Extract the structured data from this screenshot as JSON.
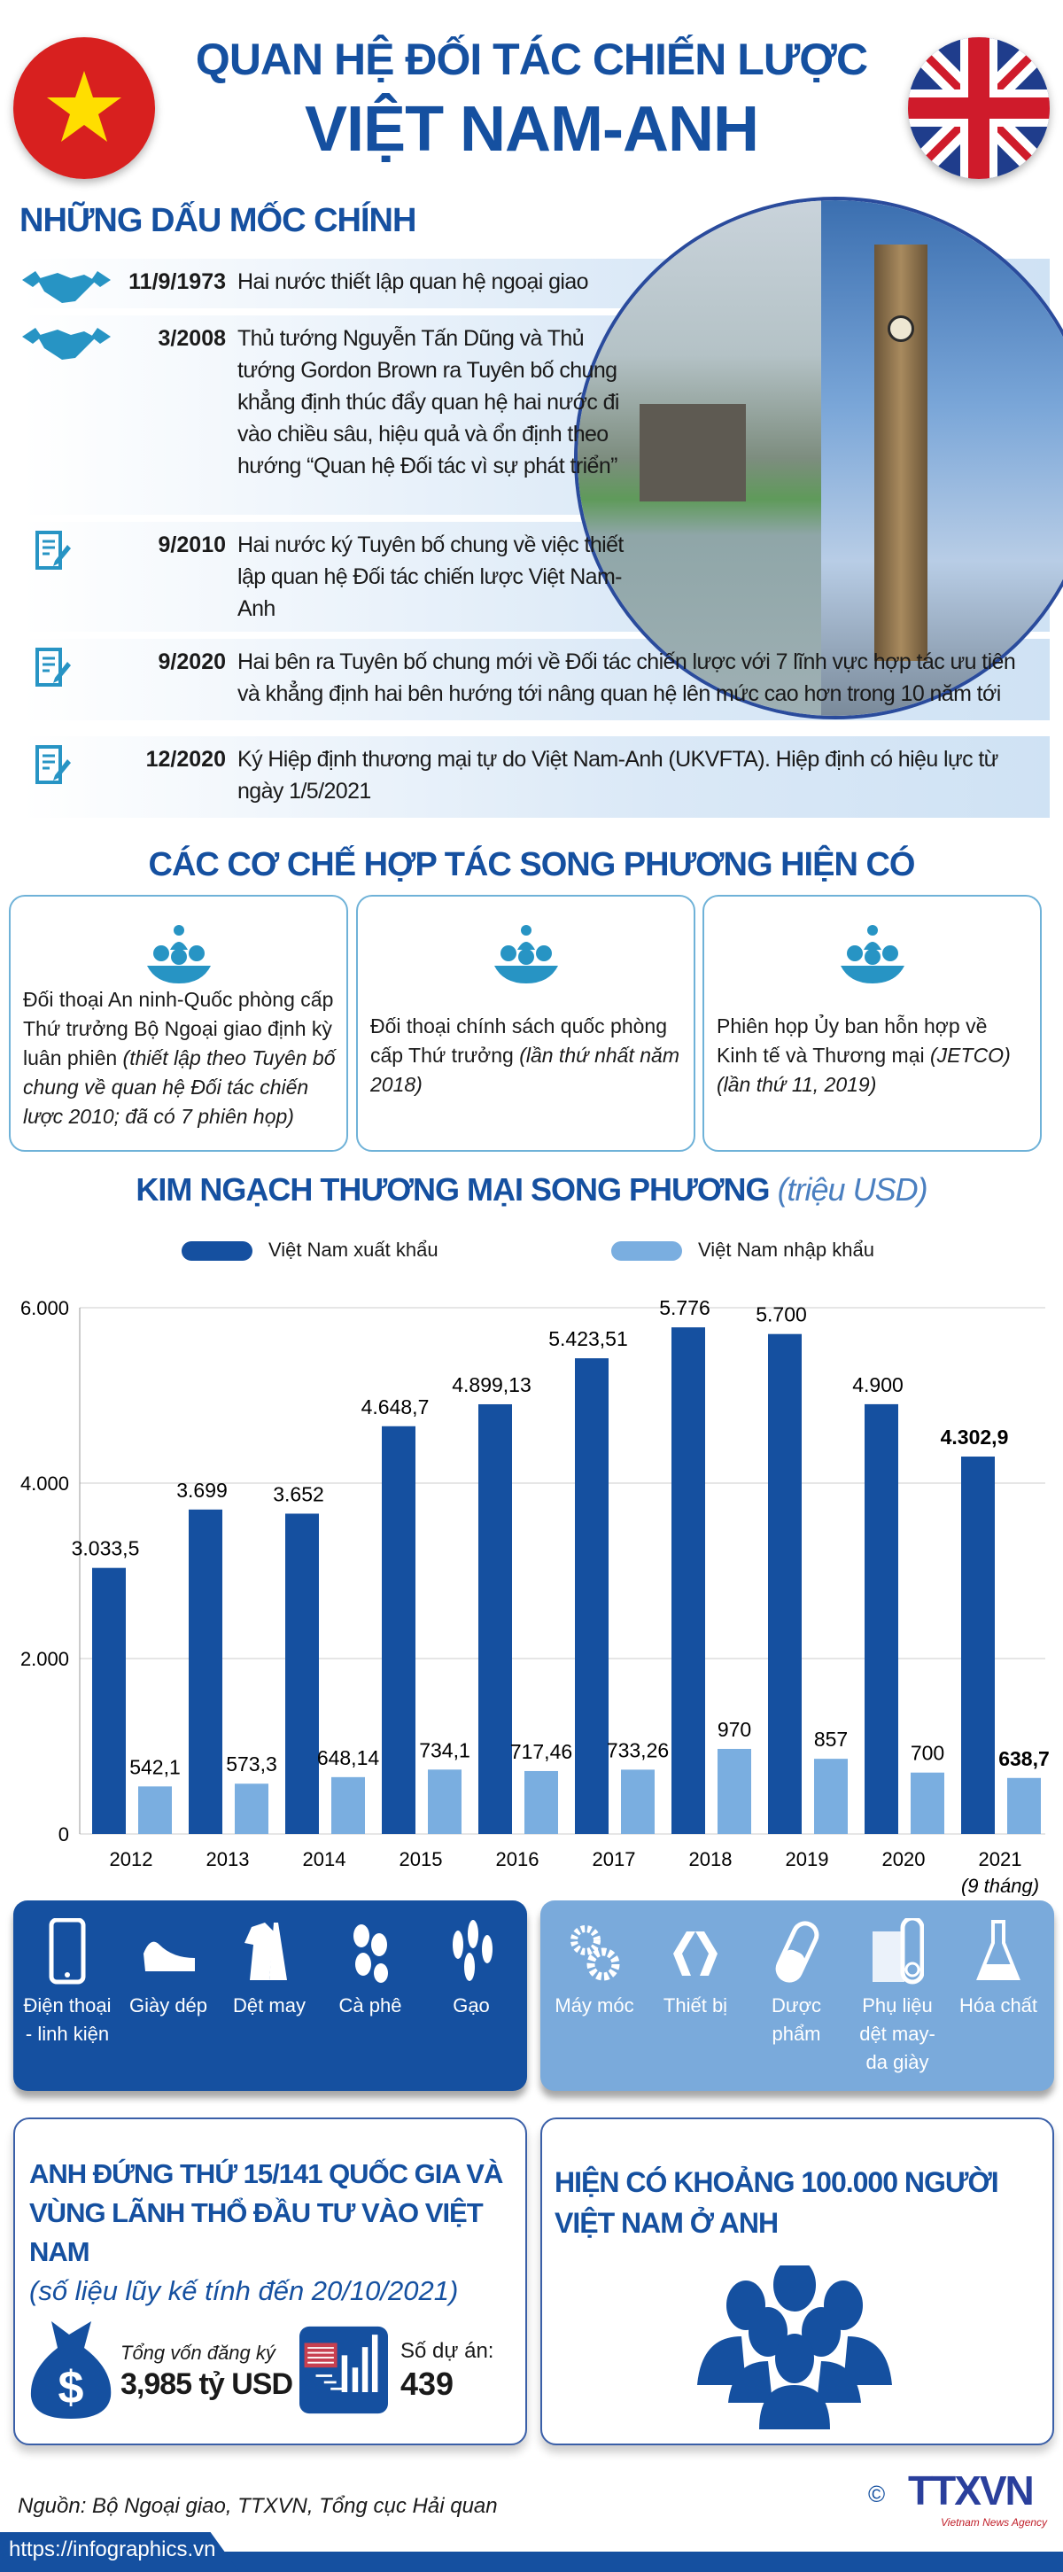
{
  "header": {
    "title_line1": "QUAN HỆ ĐỐI TÁC CHIẾN LƯỢC",
    "title_line2": "VIỆT NAM-ANH"
  },
  "milestones": {
    "heading": "NHỮNG DẤU MỐC CHÍNH",
    "items": [
      {
        "icon": "handshake-icon",
        "date": "11/9/1973",
        "text": "Hai nước thiết lập quan hệ ngoại giao"
      },
      {
        "icon": "handshake-icon",
        "date": "3/2008",
        "text": "Thủ tướng Nguyễn Tấn Dũng và Thủ tướng Gordon Brown ra Tuyên bố chung khẳng định thúc đẩy quan hệ hai nước đi vào chiều sâu, hiệu quả và ổn định theo hướng “Quan hệ Đối tác vì sự phát triển”"
      },
      {
        "icon": "document-pen-icon",
        "date": "9/2010",
        "text": "Hai nước ký Tuyên bố chung về việc thiết lập quan hệ Đối tác chiến lược Việt Nam-Anh"
      },
      {
        "icon": "document-pen-icon",
        "date": "9/2020",
        "text": "Hai bên ra Tuyên bố chung mới về Đối tác chiến lược với 7 lĩnh vực hợp tác ưu tiên và khẳng định hai bên hướng tới nâng quan hệ lên mức cao hơn trong 10 năm tới"
      },
      {
        "icon": "document-pen-icon",
        "date": "12/2020",
        "text": "Ký Hiệp định thương mại tự do Việt Nam-Anh (UKVFTA). Hiệp định có hiệu lực từ ngày 1/5/2021"
      }
    ]
  },
  "mechanisms": {
    "heading": "CÁC CƠ CHẾ HỢP TÁC SONG PHƯƠNG HIỆN CÓ",
    "cards": [
      {
        "text": "Đối thoại An ninh-Quốc phòng cấp Thứ trưởng Bộ Ngoại giao định kỳ luân phiên ",
        "note": "(thiết lập theo Tuyên bố chung về quan hệ Đối tác chiến lược 2010; đã có 7 phiên họp)"
      },
      {
        "text": "Đối thoại chính sách quốc phòng cấp Thứ trưởng ",
        "note": "(lần thứ nhất năm 2018)"
      },
      {
        "text": "Phiên họp Ủy ban hỗn hợp về Kinh tế và Thương mại ",
        "note": "(JETCO) (lần thứ 11, 2019)"
      }
    ]
  },
  "chart_data": {
    "type": "bar",
    "title": "KIM NGẠCH THƯƠNG MẠI SONG PHƯƠNG",
    "title_unit": "(triệu USD)",
    "categories": [
      "2012",
      "2013",
      "2014",
      "2015",
      "2016",
      "2017",
      "2018",
      "2019",
      "2020",
      "2021"
    ],
    "category_note": "(9 tháng)",
    "series": [
      {
        "name": "Việt Nam xuất khẩu",
        "color": "#1550a0",
        "values": [
          3033.5,
          3699,
          3652,
          4648.7,
          4899.13,
          5423.51,
          5776,
          5700,
          4900,
          4302.9
        ],
        "labels": [
          "3.033,5",
          "3.699",
          "3.652",
          "4.648,7",
          "4.899,13",
          "5.423,51",
          "5.776",
          "5.700",
          "4.900",
          "4.302,9"
        ]
      },
      {
        "name": "Việt Nam nhập khẩu",
        "color": "#7aaee0",
        "values": [
          542.1,
          573.3,
          648.14,
          734.1,
          717.46,
          733.26,
          970,
          857,
          700,
          638.7
        ],
        "labels": [
          "542,1",
          "573,3",
          "648,14",
          "734,1",
          "717,46",
          "733,26",
          "970",
          "857",
          "700",
          "638,7"
        ]
      }
    ],
    "yticks": [
      0,
      2000,
      4000,
      6000
    ],
    "ytick_labels": [
      "0",
      "2.000",
      "4.000",
      "6.000"
    ],
    "ylim": [
      0,
      6000
    ],
    "legend": "top"
  },
  "exports": {
    "color": "#1550a0",
    "items": [
      {
        "icon": "smartphone-icon",
        "label": "Điện thoại - linh kiện"
      },
      {
        "icon": "shoe-icon",
        "label": "Giày dép"
      },
      {
        "icon": "clothing-icon",
        "label": "Dệt may"
      },
      {
        "icon": "coffee-bean-icon",
        "label": "Cà phê"
      },
      {
        "icon": "rice-icon",
        "label": "Gạo"
      }
    ]
  },
  "imports": {
    "color": "#7aaadb",
    "items": [
      {
        "icon": "gears-icon",
        "label": "Máy móc"
      },
      {
        "icon": "equipment-icon",
        "label": "Thiết bị"
      },
      {
        "icon": "pill-icon",
        "label": "Dược phẩm"
      },
      {
        "icon": "fabric-roll-icon",
        "label": "Phụ liệu dệt may-da giày"
      },
      {
        "icon": "flask-icon",
        "label": "Hóa chất"
      }
    ]
  },
  "investment": {
    "heading": "ANH ĐỨNG THỨ 15/141 QUỐC GIA VÀ VÙNG LÃNH THỔ ĐẦU TƯ VÀO VIỆT NAM",
    "note": "(số liệu lũy kế tính đến 20/10/2021)",
    "capital_label": "Tổng vốn đăng ký",
    "capital_value": "3,985 tỷ USD",
    "projects_label": "Số dự án:",
    "projects_value": "439"
  },
  "diaspora": {
    "heading": "HIỆN CÓ KHOẢNG 100.000 NGƯỜI VIỆT NAM Ở ANH"
  },
  "footer": {
    "source": "Nguồn: Bộ Ngoại giao, TTXVN, Tổng cục Hải quan",
    "url": "https://infographics.vn",
    "logo": "TTXVN",
    "logo_sub": "Vietnam News Agency"
  }
}
